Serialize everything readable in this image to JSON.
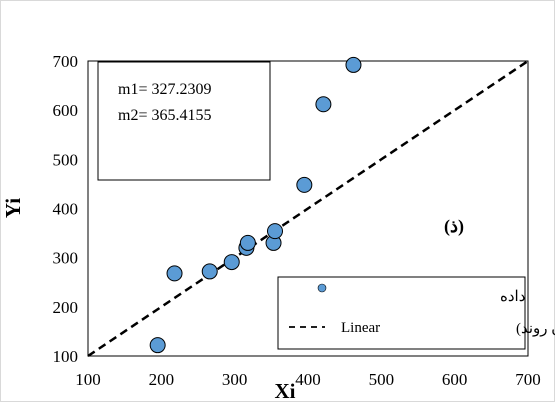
{
  "chart_data": {
    "type": "scatter",
    "title": "",
    "xlabel": "Xi",
    "ylabel": "Yi",
    "xlim": [
      100,
      700
    ],
    "ylim": [
      100,
      700
    ],
    "x_ticks": [
      "100",
      "200",
      "300",
      "400",
      "500",
      "600",
      "700"
    ],
    "y_ticks": [
      "100",
      "200",
      "300",
      "400",
      "500",
      "600",
      "700"
    ],
    "grid": false,
    "points": [
      {
        "x": 195,
        "y": 122
      },
      {
        "x": 218,
        "y": 268
      },
      {
        "x": 266,
        "y": 272
      },
      {
        "x": 296,
        "y": 291
      },
      {
        "x": 316,
        "y": 320
      },
      {
        "x": 318,
        "y": 330
      },
      {
        "x": 353,
        "y": 330
      },
      {
        "x": 355,
        "y": 354
      },
      {
        "x": 395,
        "y": 448
      },
      {
        "x": 421,
        "y": 612
      },
      {
        "x": 462,
        "y": 692
      }
    ],
    "reference_line": {
      "x": [
        100,
        700
      ],
      "y": [
        100,
        700
      ]
    },
    "stats": [
      "m1= 327.2309",
      "m2= 365.4155"
    ],
    "panel_label": "(ذ)",
    "legend": {
      "position": "bottom-right",
      "entries": [
        {
          "label": "داده",
          "marker": "circle"
        },
        {
          "label": "Linear",
          "qualifier": "(بدون روند)",
          "marker": "dashed-line"
        }
      ]
    },
    "colors": {
      "marker_fill": "#5b9bd5",
      "marker_stroke": "#000000",
      "line": "#000000"
    }
  }
}
